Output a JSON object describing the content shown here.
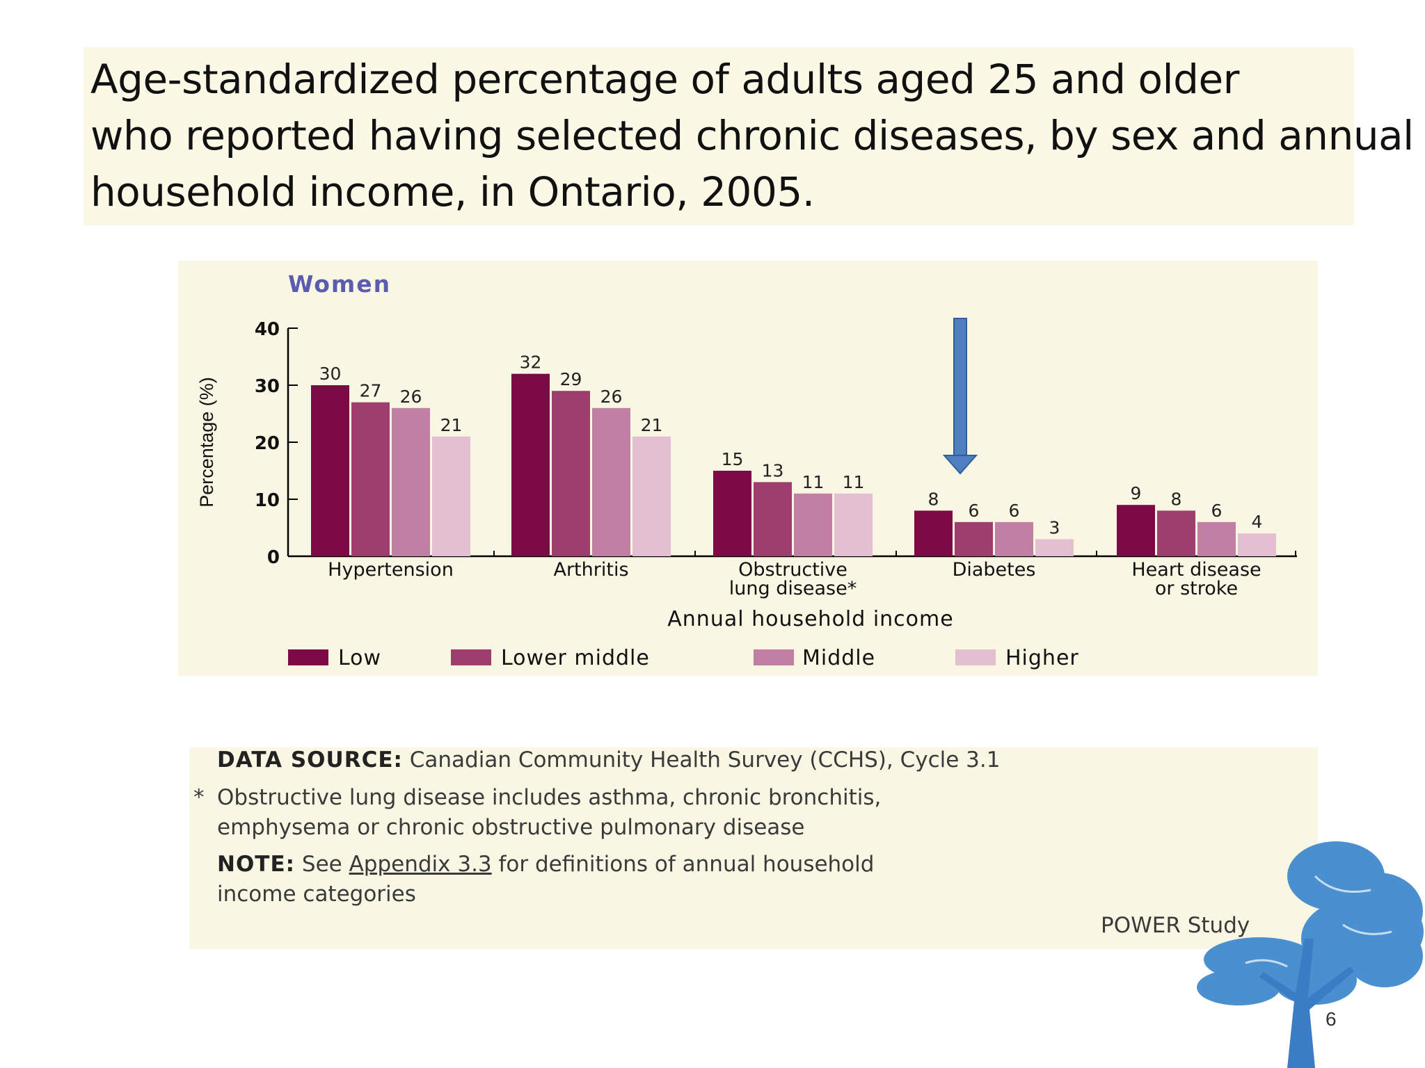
{
  "title": {
    "lines": [
      "Age-standardized percentage of adults aged 25 and older",
      "who reported having selected chronic diseases, by sex and annual",
      "household income, in Ontario, 2005."
    ]
  },
  "chart_data": {
    "type": "bar",
    "title": "Women",
    "ylabel": "Percentage (%)",
    "xlabel": "Annual household income",
    "ylim": [
      0,
      40
    ],
    "yticks": [
      "0",
      "10",
      "20",
      "30",
      "40"
    ],
    "categories": [
      {
        "lines": [
          "Hypertension"
        ]
      },
      {
        "lines": [
          "Arthritis"
        ]
      },
      {
        "lines": [
          "Obstructive",
          "lung disease*"
        ]
      },
      {
        "lines": [
          "Diabetes"
        ]
      },
      {
        "lines": [
          "Heart disease",
          "or stroke"
        ]
      }
    ],
    "series": [
      {
        "name": "Low",
        "color": "#7b0a45",
        "values": [
          30,
          32,
          15,
          8,
          9
        ]
      },
      {
        "name": "Lower middle",
        "color": "#9e3e6e",
        "values": [
          27,
          29,
          13,
          6,
          8
        ]
      },
      {
        "name": "Middle",
        "color": "#c17fa3",
        "values": [
          26,
          26,
          11,
          6,
          6
        ]
      },
      {
        "name": "Higher",
        "color": "#e2c0d2",
        "values": [
          21,
          21,
          11,
          3,
          4
        ]
      }
    ],
    "annotation": {
      "type": "arrow",
      "target_category": "Diabetes",
      "color": "#4f7fbf"
    }
  },
  "notes": {
    "source_label": "DATA SOURCE:",
    "source_text": "Canadian Community Health Survey (CCHS), Cycle 3.1",
    "asterisk": "*",
    "footnote_line1": "Obstructive lung disease includes asthma, chronic bronchitis,",
    "footnote_line2": "emphysema or chronic obstructive pulmonary disease",
    "note_label": "NOTE:",
    "note_see": "See",
    "note_link": "Appendix 3.3",
    "note_rest": "for definitions of annual household",
    "note_line2": "income categories",
    "study": "POWER Study"
  },
  "colors": {
    "tree": "#4a8fd0",
    "tree_trunk": "#3a7dc4"
  },
  "page_number": "6"
}
